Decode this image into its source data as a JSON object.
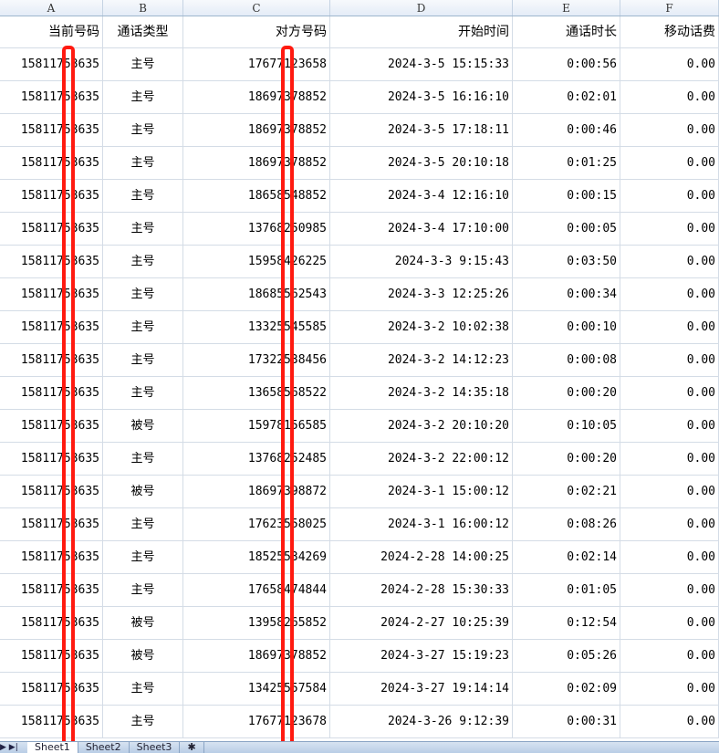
{
  "columns": [
    "A",
    "B",
    "C",
    "D",
    "E",
    "F"
  ],
  "headers": [
    "当前号码",
    "通话类型",
    "对方号码",
    "开始时间",
    "通话时长",
    "移动话费"
  ],
  "rows": [
    [
      "15811753635",
      "主号",
      "17677123658",
      "2024-3-5 15:15:33",
      "0:00:56",
      "0.00"
    ],
    [
      "15811753635",
      "主号",
      "18697378852",
      "2024-3-5 16:16:10",
      "0:02:01",
      "0.00"
    ],
    [
      "15811753635",
      "主号",
      "18697378852",
      "2024-3-5 17:18:11",
      "0:00:46",
      "0.00"
    ],
    [
      "15811753635",
      "主号",
      "18697378852",
      "2024-3-5 20:10:18",
      "0:01:25",
      "0.00"
    ],
    [
      "15811753635",
      "主号",
      "18658548852",
      "2024-3-4 12:16:10",
      "0:00:15",
      "0.00"
    ],
    [
      "15811753635",
      "主号",
      "13768250985",
      "2024-3-4 17:10:00",
      "0:00:05",
      "0.00"
    ],
    [
      "15811753635",
      "主号",
      "15958426225",
      "2024-3-3 9:15:43",
      "0:03:50",
      "0.00"
    ],
    [
      "15811753635",
      "主号",
      "18685562543",
      "2024-3-3 12:25:26",
      "0:00:34",
      "0.00"
    ],
    [
      "15811753635",
      "主号",
      "13325545585",
      "2024-3-2 10:02:38",
      "0:00:10",
      "0.00"
    ],
    [
      "15811753635",
      "主号",
      "17322538456",
      "2024-3-2 14:12:23",
      "0:00:08",
      "0.00"
    ],
    [
      "15811753635",
      "主号",
      "13658568522",
      "2024-3-2 14:35:18",
      "0:00:20",
      "0.00"
    ],
    [
      "15811753635",
      "被号",
      "15978156585",
      "2024-3-2 20:10:20",
      "0:10:05",
      "0.00"
    ],
    [
      "15811753635",
      "主号",
      "13768252485",
      "2024-3-2 22:00:12",
      "0:00:20",
      "0.00"
    ],
    [
      "15811753635",
      "被号",
      "18697398872",
      "2024-3-1 15:00:12",
      "0:02:21",
      "0.00"
    ],
    [
      "15811753635",
      "主号",
      "17623558025",
      "2024-3-1 16:00:12",
      "0:08:26",
      "0.00"
    ],
    [
      "15811753635",
      "主号",
      "18525534269",
      "2024-2-28 14:00:25",
      "0:02:14",
      "0.00"
    ],
    [
      "15811753635",
      "主号",
      "17658474844",
      "2024-2-28 15:30:33",
      "0:01:05",
      "0.00"
    ],
    [
      "15811753635",
      "被号",
      "13958265852",
      "2024-2-27 10:25:39",
      "0:12:54",
      "0.00"
    ],
    [
      "15811753635",
      "被号",
      "18697378852",
      "2024-3-27 15:19:23",
      "0:05:26",
      "0.00"
    ],
    [
      "15811753635",
      "主号",
      "13425557584",
      "2024-3-27 19:14:14",
      "0:02:09",
      "0.00"
    ],
    [
      "15811753635",
      "主号",
      "17677123678",
      "2024-3-26 9:12:39",
      "0:00:31",
      "0.00"
    ]
  ],
  "sheet_tabs": [
    "Sheet1",
    "Sheet2",
    "Sheet3"
  ],
  "active_tab": "Sheet1",
  "redaction_color": "#ff1a10"
}
